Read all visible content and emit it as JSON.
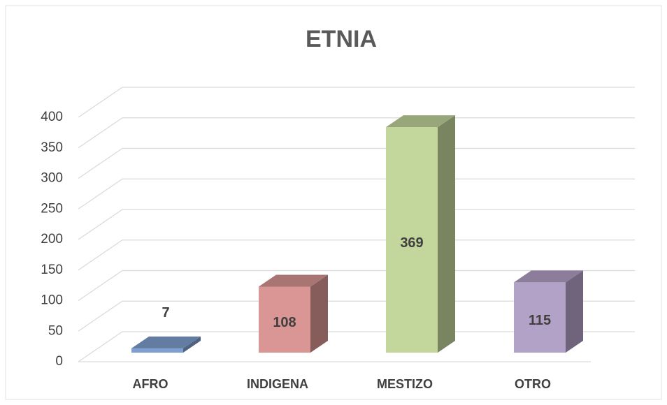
{
  "chart_data": {
    "type": "bar3d",
    "title": "ETNIA",
    "categories": [
      "AFRO",
      "INDIGENA",
      "MESTIZO",
      "OTRO"
    ],
    "values": [
      7,
      108,
      369,
      115
    ],
    "colors": [
      "#7f9fd0",
      "#d99694",
      "#c3d69b",
      "#b3a2c7"
    ],
    "ylim": [
      0,
      400
    ],
    "yticks": [
      0,
      50,
      100,
      150,
      200,
      250,
      300,
      350,
      400
    ],
    "grid": true
  }
}
